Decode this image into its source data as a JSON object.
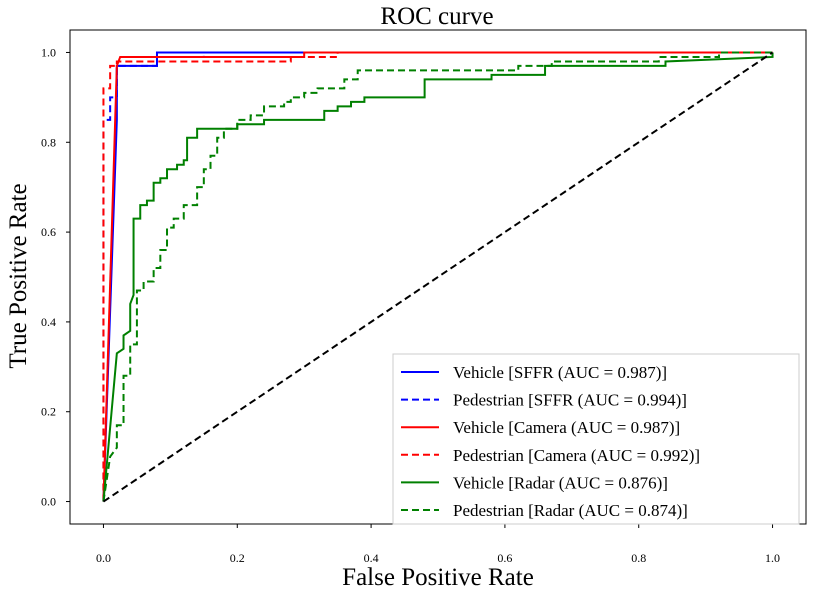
{
  "chart_data": {
    "type": "line",
    "title": "ROC curve",
    "xlabel": "False Positive Rate",
    "ylabel": "True Positive Rate",
    "xlim": [
      -0.05,
      1.05
    ],
    "ylim": [
      -0.05,
      1.05
    ],
    "xticks": [
      0.0,
      0.2,
      0.4,
      0.6,
      0.8,
      1.0
    ],
    "yticks": [
      0.0,
      0.2,
      0.4,
      0.6,
      0.8,
      1.0
    ],
    "xtick_labels": [
      "0.0",
      "0.2",
      "0.4",
      "0.6",
      "0.8",
      "1.0"
    ],
    "ytick_labels": [
      "0.0",
      "0.2",
      "0.4",
      "0.6",
      "0.8",
      "1.0"
    ],
    "legend_location": "bottom-right",
    "series": [
      {
        "name": "Vehicle [SFFR (AUC = 0.987)]",
        "color": "#0000ff",
        "dash": "solid",
        "points": [
          [
            0,
            0
          ],
          [
            0.02,
            0.85
          ],
          [
            0.02,
            0.97
          ],
          [
            0.08,
            0.97
          ],
          [
            0.08,
            1.0
          ],
          [
            1.0,
            1.0
          ]
        ]
      },
      {
        "name": "Pedestrian [SFFR (AUC = 0.994)]",
        "color": "#0000ff",
        "dash": "dashed",
        "points": [
          [
            0,
            0
          ],
          [
            0,
            0.85
          ],
          [
            0.01,
            0.85
          ],
          [
            0.01,
            0.9
          ],
          [
            0.02,
            0.9
          ],
          [
            0.02,
            0.97
          ],
          [
            0.08,
            0.97
          ],
          [
            0.08,
            0.99
          ],
          [
            0.15,
            0.99
          ],
          [
            0.15,
            1.0
          ],
          [
            1.0,
            1.0
          ]
        ]
      },
      {
        "name": "Vehicle [Camera (AUC = 0.987)]",
        "color": "#ff0000",
        "dash": "solid",
        "points": [
          [
            0,
            0
          ],
          [
            0.02,
            0.97
          ],
          [
            0.025,
            0.99
          ],
          [
            0.3,
            0.99
          ],
          [
            0.3,
            1.0
          ],
          [
            1.0,
            1.0
          ]
        ]
      },
      {
        "name": "Pedestrian [Camera (AUC = 0.992)]",
        "color": "#ff0000",
        "dash": "dashed",
        "points": [
          [
            0,
            0
          ],
          [
            0,
            0.92
          ],
          [
            0.01,
            0.92
          ],
          [
            0.01,
            0.97
          ],
          [
            0.02,
            0.97
          ],
          [
            0.02,
            0.98
          ],
          [
            0.28,
            0.98
          ],
          [
            0.28,
            0.99
          ],
          [
            0.35,
            0.99
          ],
          [
            0.35,
            1.0
          ],
          [
            0.91,
            1.0
          ],
          [
            0.91,
            1.0
          ],
          [
            1.0,
            1.0
          ]
        ]
      },
      {
        "name": "Vehicle [Radar (AUC = 0.876)]",
        "color": "#008000",
        "dash": "solid",
        "points": [
          [
            0,
            0
          ],
          [
            0.02,
            0.33
          ],
          [
            0.03,
            0.34
          ],
          [
            0.03,
            0.37
          ],
          [
            0.04,
            0.38
          ],
          [
            0.04,
            0.44
          ],
          [
            0.045,
            0.46
          ],
          [
            0.045,
            0.63
          ],
          [
            0.055,
            0.63
          ],
          [
            0.055,
            0.66
          ],
          [
            0.065,
            0.66
          ],
          [
            0.065,
            0.67
          ],
          [
            0.075,
            0.67
          ],
          [
            0.075,
            0.71
          ],
          [
            0.085,
            0.71
          ],
          [
            0.085,
            0.72
          ],
          [
            0.095,
            0.72
          ],
          [
            0.095,
            0.74
          ],
          [
            0.11,
            0.74
          ],
          [
            0.11,
            0.75
          ],
          [
            0.12,
            0.75
          ],
          [
            0.12,
            0.76
          ],
          [
            0.125,
            0.76
          ],
          [
            0.125,
            0.81
          ],
          [
            0.14,
            0.81
          ],
          [
            0.14,
            0.83
          ],
          [
            0.2,
            0.83
          ],
          [
            0.2,
            0.84
          ],
          [
            0.24,
            0.84
          ],
          [
            0.24,
            0.85
          ],
          [
            0.33,
            0.85
          ],
          [
            0.33,
            0.87
          ],
          [
            0.35,
            0.87
          ],
          [
            0.35,
            0.88
          ],
          [
            0.37,
            0.88
          ],
          [
            0.37,
            0.89
          ],
          [
            0.39,
            0.89
          ],
          [
            0.39,
            0.9
          ],
          [
            0.48,
            0.9
          ],
          [
            0.48,
            0.94
          ],
          [
            0.58,
            0.94
          ],
          [
            0.58,
            0.95
          ],
          [
            0.66,
            0.95
          ],
          [
            0.66,
            0.97
          ],
          [
            0.84,
            0.97
          ],
          [
            0.84,
            0.98
          ],
          [
            1.0,
            0.99
          ],
          [
            1.0,
            1.0
          ]
        ]
      },
      {
        "name": "Pedestrian [Radar (AUC = 0.874)]",
        "color": "#008000",
        "dash": "dashed",
        "points": [
          [
            0,
            0
          ],
          [
            0.01,
            0.1
          ],
          [
            0.02,
            0.12
          ],
          [
            0.02,
            0.17
          ],
          [
            0.03,
            0.17
          ],
          [
            0.03,
            0.28
          ],
          [
            0.04,
            0.28
          ],
          [
            0.04,
            0.35
          ],
          [
            0.05,
            0.35
          ],
          [
            0.05,
            0.47
          ],
          [
            0.06,
            0.47
          ],
          [
            0.06,
            0.49
          ],
          [
            0.075,
            0.49
          ],
          [
            0.075,
            0.52
          ],
          [
            0.085,
            0.52
          ],
          [
            0.085,
            0.56
          ],
          [
            0.095,
            0.56
          ],
          [
            0.095,
            0.61
          ],
          [
            0.105,
            0.61
          ],
          [
            0.105,
            0.63
          ],
          [
            0.12,
            0.63
          ],
          [
            0.12,
            0.66
          ],
          [
            0.14,
            0.66
          ],
          [
            0.14,
            0.7
          ],
          [
            0.15,
            0.7
          ],
          [
            0.15,
            0.74
          ],
          [
            0.16,
            0.74
          ],
          [
            0.16,
            0.77
          ],
          [
            0.17,
            0.77
          ],
          [
            0.17,
            0.81
          ],
          [
            0.18,
            0.81
          ],
          [
            0.18,
            0.83
          ],
          [
            0.2,
            0.83
          ],
          [
            0.2,
            0.85
          ],
          [
            0.22,
            0.85
          ],
          [
            0.22,
            0.86
          ],
          [
            0.24,
            0.86
          ],
          [
            0.24,
            0.88
          ],
          [
            0.27,
            0.88
          ],
          [
            0.27,
            0.89
          ],
          [
            0.28,
            0.89
          ],
          [
            0.28,
            0.9
          ],
          [
            0.3,
            0.9
          ],
          [
            0.3,
            0.91
          ],
          [
            0.32,
            0.91
          ],
          [
            0.32,
            0.92
          ],
          [
            0.36,
            0.92
          ],
          [
            0.36,
            0.94
          ],
          [
            0.38,
            0.94
          ],
          [
            0.38,
            0.96
          ],
          [
            0.62,
            0.96
          ],
          [
            0.62,
            0.97
          ],
          [
            0.67,
            0.97
          ],
          [
            0.67,
            0.98
          ],
          [
            0.83,
            0.98
          ],
          [
            0.83,
            0.99
          ],
          [
            0.92,
            0.99
          ],
          [
            0.92,
            1.0
          ],
          [
            1.0,
            1.0
          ]
        ]
      },
      {
        "name": "chance",
        "color": "#000000",
        "dash": "dashed",
        "in_legend": false,
        "points": [
          [
            0,
            0
          ],
          [
            1,
            1
          ]
        ]
      }
    ]
  }
}
